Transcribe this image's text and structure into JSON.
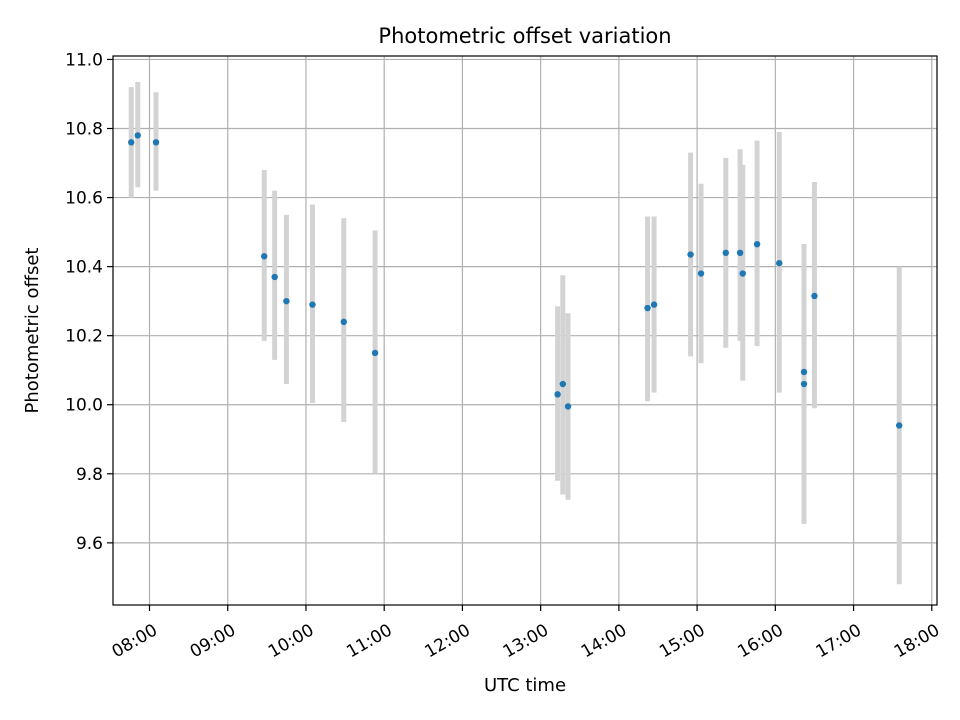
{
  "chart_data": {
    "type": "scatter",
    "title": "Photometric offset variation",
    "xlabel": "UTC time",
    "ylabel": "Photometric offset",
    "x_axis_kind": "time",
    "xlim": [
      "07:32",
      "18:04"
    ],
    "ylim": [
      9.42,
      11.01
    ],
    "grid": true,
    "x_ticks": [
      "08:00",
      "09:00",
      "10:00",
      "11:00",
      "12:00",
      "13:00",
      "14:00",
      "15:00",
      "16:00",
      "17:00",
      "18:00"
    ],
    "y_ticks": [
      9.6,
      9.8,
      10.0,
      10.2,
      10.4,
      10.6,
      10.8,
      11.0
    ],
    "y_tick_labels": [
      "9.6",
      "9.8",
      "10.0",
      "10.2",
      "10.4",
      "10.6",
      "10.8",
      "11.0"
    ],
    "point_color": "#1f77b4",
    "errorbar_color": "#d3d3d3",
    "points": [
      {
        "x": "07:46",
        "y": 10.76,
        "lo": 10.6,
        "hi": 10.92
      },
      {
        "x": "07:51",
        "y": 10.78,
        "lo": 10.63,
        "hi": 10.935
      },
      {
        "x": "08:05",
        "y": 10.76,
        "lo": 10.62,
        "hi": 10.905
      },
      {
        "x": "09:28",
        "y": 10.43,
        "lo": 10.185,
        "hi": 10.68
      },
      {
        "x": "09:36",
        "y": 10.37,
        "lo": 10.13,
        "hi": 10.62
      },
      {
        "x": "09:45",
        "y": 10.3,
        "lo": 10.06,
        "hi": 10.55
      },
      {
        "x": "10:05",
        "y": 10.29,
        "lo": 10.005,
        "hi": 10.58
      },
      {
        "x": "10:29",
        "y": 10.24,
        "lo": 9.95,
        "hi": 10.54
      },
      {
        "x": "10:53",
        "y": 10.15,
        "lo": 9.8,
        "hi": 10.505
      },
      {
        "x": "13:13",
        "y": 10.03,
        "lo": 9.78,
        "hi": 10.285
      },
      {
        "x": "13:17",
        "y": 10.06,
        "lo": 9.74,
        "hi": 10.375
      },
      {
        "x": "13:21",
        "y": 9.995,
        "lo": 9.725,
        "hi": 10.265
      },
      {
        "x": "14:22",
        "y": 10.28,
        "lo": 10.01,
        "hi": 10.545
      },
      {
        "x": "14:27",
        "y": 10.29,
        "lo": 10.035,
        "hi": 10.545
      },
      {
        "x": "14:55",
        "y": 10.435,
        "lo": 10.14,
        "hi": 10.73
      },
      {
        "x": "15:03",
        "y": 10.38,
        "lo": 10.12,
        "hi": 10.64
      },
      {
        "x": "15:22",
        "y": 10.44,
        "lo": 10.165,
        "hi": 10.715
      },
      {
        "x": "15:33",
        "y": 10.44,
        "lo": 10.185,
        "hi": 10.74
      },
      {
        "x": "15:35",
        "y": 10.38,
        "lo": 10.07,
        "hi": 10.695
      },
      {
        "x": "15:46",
        "y": 10.465,
        "lo": 10.17,
        "hi": 10.765
      },
      {
        "x": "16:03",
        "y": 10.41,
        "lo": 10.035,
        "hi": 10.79
      },
      {
        "x": "16:22",
        "y": 10.095,
        "lo": 9.735,
        "hi": 10.465
      },
      {
        "x": "16:22",
        "y": 10.06,
        "lo": 9.655,
        "hi": 10.465
      },
      {
        "x": "16:30",
        "y": 10.315,
        "lo": 9.99,
        "hi": 10.645
      },
      {
        "x": "17:35",
        "y": 9.94,
        "lo": 9.48,
        "hi": 10.4
      }
    ]
  }
}
